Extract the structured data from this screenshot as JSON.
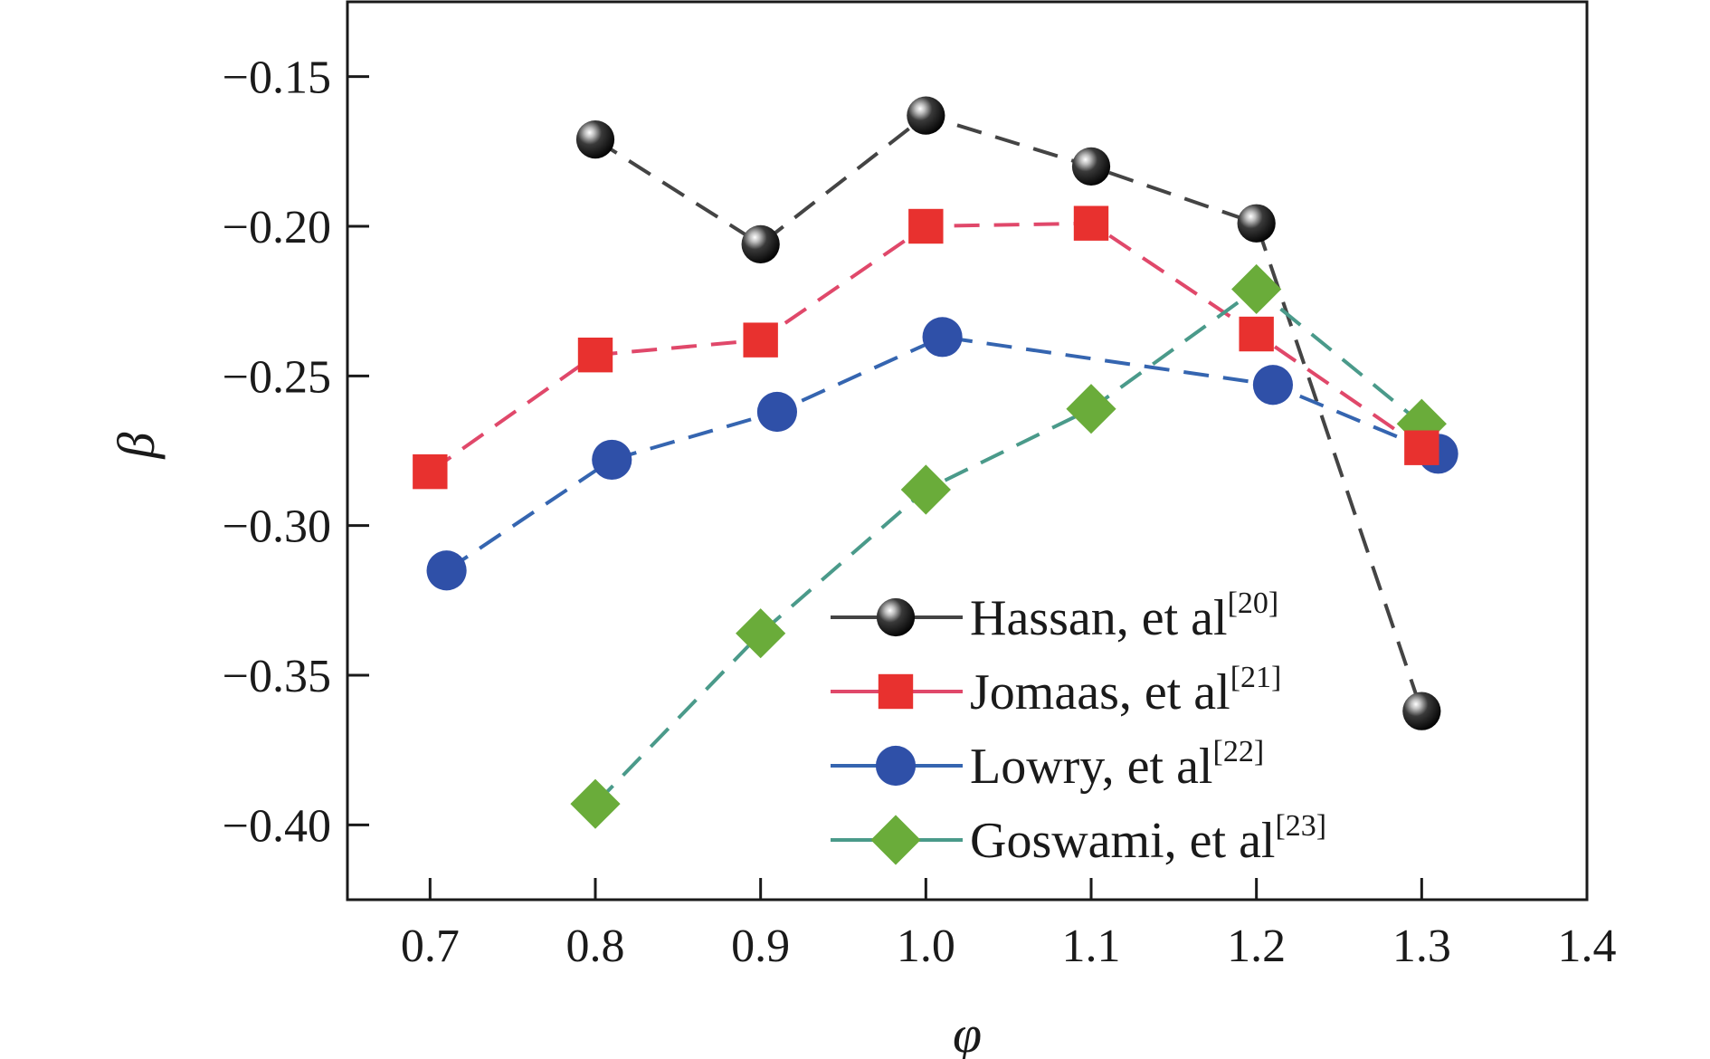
{
  "chart_data": {
    "type": "line",
    "xlabel": "φ",
    "ylabel": "β",
    "xlim": [
      0.65,
      1.4
    ],
    "ylim": [
      -0.425,
      -0.125
    ],
    "xticks": [
      "0.7",
      "0.8",
      "0.9",
      "1.0",
      "1.1",
      "1.2",
      "1.3",
      "1.4"
    ],
    "xtick_values": [
      0.7,
      0.8,
      0.9,
      1.0,
      1.1,
      1.2,
      1.3,
      1.4
    ],
    "yticks": [
      "−0.15",
      "−0.20",
      "−0.25",
      "−0.30",
      "−0.35",
      "−0.40"
    ],
    "ytick_values": [
      -0.15,
      -0.2,
      -0.25,
      -0.3,
      -0.35,
      -0.4
    ],
    "grid": false,
    "legend_position": "bottom-right",
    "series": [
      {
        "name": "Hassan, et al",
        "ref": "[20]",
        "marker": "sphere",
        "color": "#111111",
        "line_color": "#444444",
        "x": [
          0.8,
          0.9,
          1.0,
          1.1,
          1.2,
          1.3
        ],
        "y": [
          -0.171,
          -0.206,
          -0.163,
          -0.18,
          -0.199,
          -0.362
        ]
      },
      {
        "name": "Jomaas, et al",
        "ref": "[21]",
        "marker": "square",
        "color": "#e8312f",
        "line_color": "#e0486a",
        "x": [
          0.7,
          0.8,
          0.9,
          1.0,
          1.1,
          1.2,
          1.3
        ],
        "y": [
          -0.282,
          -0.243,
          -0.238,
          -0.2,
          -0.199,
          -0.236,
          -0.274
        ]
      },
      {
        "name": "Lowry, et al",
        "ref": "[22]",
        "marker": "circle",
        "color": "#2f50a8",
        "line_color": "#3565b0",
        "x": [
          0.71,
          0.81,
          0.91,
          1.01,
          1.21,
          1.31
        ],
        "y": [
          -0.315,
          -0.278,
          -0.262,
          -0.237,
          -0.253,
          -0.276
        ]
      },
      {
        "name": "Goswami, et al",
        "ref": "[23]",
        "marker": "diamond",
        "color": "#6aac3a",
        "line_color": "#4a9a8a",
        "x": [
          0.8,
          0.9,
          1.0,
          1.1,
          1.2,
          1.3
        ],
        "y": [
          -0.393,
          -0.336,
          -0.288,
          -0.261,
          -0.221,
          -0.266
        ]
      }
    ]
  }
}
